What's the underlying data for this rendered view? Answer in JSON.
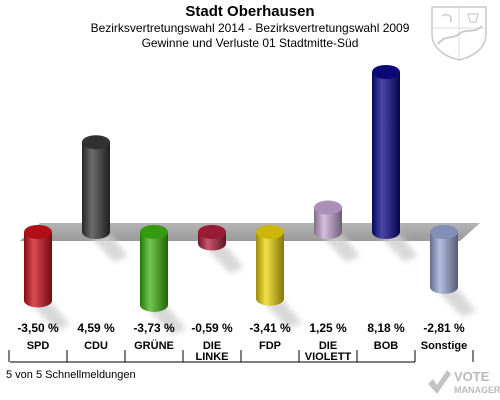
{
  "header": {
    "title": "Stadt Oberhausen",
    "subtitle1": "Bezirksvertretungswahl 2014 - Bezirksvertretungswahl 2009",
    "subtitle2": "Gewinne und Verluste 01 Stadtmitte-Süd"
  },
  "footer": {
    "text": "5 von 5 Schnellmeldungen"
  },
  "watermark": {
    "line1": "VOTE",
    "line2": "MANAGER"
  },
  "chart_data": {
    "type": "bar",
    "categories": [
      "SPD",
      "CDU",
      "GRÜNE",
      "DIE LINKE",
      "FDP",
      "DIE VIOLETT",
      "BOB",
      "Sonstige"
    ],
    "category_lines": [
      [
        "SPD"
      ],
      [
        "CDU"
      ],
      [
        "GRÜNE"
      ],
      [
        "DIE",
        "LINKE"
      ],
      [
        "FDP"
      ],
      [
        "DIE",
        "VIOLETT"
      ],
      [
        "BOB"
      ],
      [
        "Sonstige"
      ]
    ],
    "values": [
      -3.5,
      4.59,
      -3.73,
      -0.59,
      -3.41,
      1.25,
      8.18,
      -2.81
    ],
    "value_labels": [
      "-3,50 %",
      "4,59 %",
      "-3,73 %",
      "-0,59 %",
      "-3,41 %",
      "1,25 %",
      "8,18 %",
      "-2,81 %"
    ],
    "colors": [
      "#d0101c",
      "#3a3a3a",
      "#3db512",
      "#b5203f",
      "#eed70c",
      "#c8a8d6",
      "#0c0a8a",
      "#9aa8d4"
    ],
    "baseline": 0,
    "grid": false,
    "legend": "none"
  }
}
